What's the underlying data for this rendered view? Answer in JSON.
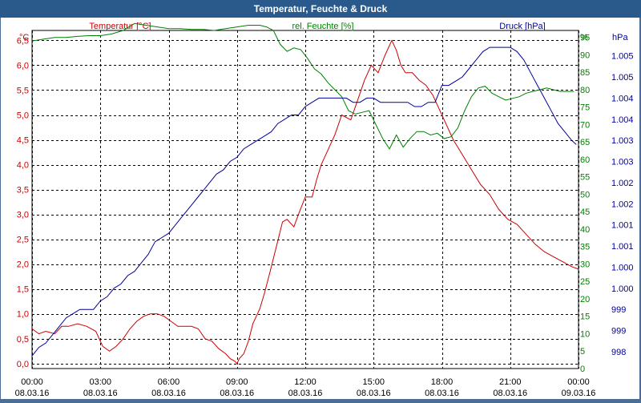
{
  "window": {
    "title": "Temperatur, Feuchte & Druck"
  },
  "colors": {
    "temperature": "#cc0000",
    "humidity": "#008000",
    "pressure": "#000099",
    "grid": "#000000",
    "titlebar": "#2a5a8c"
  },
  "chart_data": {
    "type": "line",
    "title": "Temperatur, Feuchte & Druck",
    "grid": true,
    "x_labels": [
      {
        "time": "00:00",
        "date": "08.03.16"
      },
      {
        "time": "03:00",
        "date": "08.03.16"
      },
      {
        "time": "06:00",
        "date": "08.03.16"
      },
      {
        "time": "09:00",
        "date": "08.03.16"
      },
      {
        "time": "12:00",
        "date": "08.03.16"
      },
      {
        "time": "15:00",
        "date": "08.03.16"
      },
      {
        "time": "18:00",
        "date": "08.03.16"
      },
      {
        "time": "21:00",
        "date": "08.03.16"
      },
      {
        "time": "00:00",
        "date": "09.03.16"
      }
    ],
    "x_range_hours": [
      0,
      24
    ],
    "axes": {
      "temperature": {
        "label": "Temperatur [°C]",
        "unit": "°C",
        "range": [
          -0.1,
          6.7
        ],
        "ticks": [
          "0,0",
          "0,5",
          "1,0",
          "1,5",
          "2,0",
          "2,5",
          "3,0",
          "3,5",
          "4,0",
          "4,5",
          "5,0",
          "5,5",
          "6,0",
          "6,5"
        ]
      },
      "humidity": {
        "label": "rel. Feuchte [%]",
        "unit": "%",
        "range": [
          0,
          97
        ],
        "ticks": [
          "0",
          "5",
          "10",
          "15",
          "20",
          "25",
          "30",
          "35",
          "40",
          "45",
          "50",
          "55",
          "60",
          "65",
          "70",
          "75",
          "80",
          "85",
          "90",
          "95"
        ]
      },
      "pressure": {
        "label": "Druck [hPa]",
        "unit": "hPa",
        "range": [
          997.6,
          1005.6
        ],
        "ticks": [
          "998",
          "999",
          "999",
          "1.000",
          "1.000",
          "1.001",
          "1.001",
          "1.002",
          "1.002",
          "1.003",
          "1.003",
          "1.004",
          "1.004",
          "1.005",
          "1.005"
        ]
      }
    },
    "series": [
      {
        "name": "Temperatur [°C]",
        "axis": "temperature",
        "x": [
          0,
          0.3,
          0.6,
          1,
          1.3,
          1.6,
          2,
          2.4,
          2.8,
          3.1,
          3.4,
          3.7,
          4,
          4.3,
          4.6,
          4.9,
          5.2,
          5.5,
          5.8,
          6.1,
          6.4,
          6.7,
          7,
          7.3,
          7.6,
          7.9,
          8.2,
          8.5,
          8.7,
          8.9,
          9,
          9.1,
          9.3,
          9.5,
          9.7,
          10,
          10.2,
          10.4,
          10.7,
          11,
          11.2,
          11.5,
          11.7,
          12,
          12.3,
          12.5,
          12.7,
          13,
          13.3,
          13.6,
          14,
          14.3,
          14.6,
          14.9,
          15.2,
          15.5,
          15.8,
          16,
          16.2,
          16.4,
          16.7,
          17,
          17.3,
          17.6,
          17.9,
          18.2,
          18.5,
          18.9,
          19.3,
          19.7,
          20.1,
          20.5,
          20.9,
          21.3,
          21.7,
          22.1,
          22.5,
          22.9,
          23.3,
          23.7,
          24
        ],
        "values": [
          0.7,
          0.6,
          0.65,
          0.6,
          0.75,
          0.75,
          0.8,
          0.75,
          0.65,
          0.35,
          0.25,
          0.35,
          0.5,
          0.7,
          0.85,
          0.95,
          1.0,
          1.0,
          0.95,
          0.85,
          0.75,
          0.75,
          0.75,
          0.7,
          0.5,
          0.45,
          0.3,
          0.2,
          0.1,
          0.05,
          0.0,
          0.1,
          0.2,
          0.45,
          0.8,
          1.1,
          1.4,
          1.75,
          2.3,
          2.85,
          2.9,
          2.75,
          3.0,
          3.35,
          3.35,
          3.7,
          4.0,
          4.3,
          4.6,
          5.0,
          4.9,
          5.3,
          5.7,
          6.0,
          5.85,
          6.2,
          6.5,
          6.3,
          6.0,
          5.85,
          5.85,
          5.7,
          5.6,
          5.4,
          5.1,
          4.8,
          4.5,
          4.2,
          3.9,
          3.6,
          3.4,
          3.1,
          2.9,
          2.8,
          2.6,
          2.4,
          2.25,
          2.15,
          2.05,
          1.95,
          1.9
        ]
      },
      {
        "name": "rel. Feuchte [%]",
        "axis": "humidity",
        "x": [
          0,
          0.5,
          1,
          1.5,
          2,
          2.5,
          3,
          3.5,
          4,
          4.5,
          5,
          5.5,
          6,
          6.5,
          7,
          7.5,
          8,
          8.5,
          9,
          9.5,
          10,
          10.3,
          10.6,
          10.9,
          11.2,
          11.5,
          11.8,
          12.1,
          12.4,
          12.7,
          13,
          13.3,
          13.6,
          13.9,
          14.2,
          14.5,
          14.8,
          15.1,
          15.4,
          15.7,
          16,
          16.3,
          16.6,
          16.9,
          17.2,
          17.5,
          17.8,
          18.1,
          18.4,
          18.7,
          19,
          19.3,
          19.6,
          19.9,
          20.2,
          20.5,
          20.8,
          21.1,
          21.4,
          21.7,
          22,
          22.3,
          22.6,
          22.9,
          23.2,
          23.5,
          23.8
        ],
        "values": [
          94,
          94.5,
          95,
          95,
          95.3,
          95.5,
          95.5,
          96,
          97,
          99,
          98.5,
          98,
          97.5,
          97.5,
          97.3,
          97.3,
          97,
          97.5,
          98,
          98.5,
          98.5,
          98,
          97,
          93,
          91,
          92,
          91.5,
          89,
          86,
          84.5,
          82,
          80,
          78,
          74,
          73,
          73.5,
          74,
          70,
          66,
          63,
          67,
          63.5,
          66,
          68,
          68,
          67,
          67.5,
          66,
          66.5,
          69,
          74,
          78,
          80.5,
          81,
          79,
          78,
          77,
          77.5,
          78,
          79,
          79.5,
          80,
          80.5,
          80,
          79.5,
          79.5,
          79.5
        ]
      },
      {
        "name": "Druck [hPa]",
        "axis": "pressure",
        "x": [
          0,
          0.3,
          0.6,
          0.9,
          1.2,
          1.5,
          1.8,
          2.1,
          2.4,
          2.7,
          3,
          3.3,
          3.6,
          3.9,
          4.2,
          4.5,
          4.8,
          5.1,
          5.4,
          5.7,
          6,
          6.3,
          6.6,
          6.9,
          7.2,
          7.5,
          7.8,
          8.1,
          8.4,
          8.7,
          9,
          9.3,
          9.6,
          9.9,
          10.2,
          10.5,
          10.8,
          11.1,
          11.4,
          11.7,
          12,
          12.3,
          12.6,
          12.9,
          13.2,
          13.5,
          13.8,
          14.1,
          14.4,
          14.7,
          15,
          15.3,
          15.6,
          15.9,
          16.2,
          16.5,
          16.8,
          17.1,
          17.4,
          17.7,
          18,
          18.3,
          18.6,
          18.9,
          19.2,
          19.5,
          19.8,
          20.1,
          20.4,
          20.7,
          21,
          21.3,
          21.6,
          21.9,
          22.2,
          22.5,
          22.8,
          23.1,
          23.4,
          23.7,
          23.9
        ],
        "values": [
          997.9,
          998.1,
          998.2,
          998.4,
          998.6,
          998.8,
          998.9,
          999.0,
          999.0,
          999.0,
          999.2,
          999.3,
          999.5,
          999.6,
          999.8,
          999.9,
          1000.1,
          1000.3,
          1000.6,
          1000.7,
          1000.8,
          1001.0,
          1001.2,
          1001.4,
          1001.6,
          1001.8,
          1002.0,
          1002.2,
          1002.3,
          1002.5,
          1002.6,
          1002.8,
          1002.9,
          1003.0,
          1003.1,
          1003.2,
          1003.4,
          1003.5,
          1003.6,
          1003.6,
          1003.8,
          1003.9,
          1004.0,
          1004.0,
          1004.0,
          1004.0,
          1004.0,
          1003.9,
          1003.9,
          1004.0,
          1004.0,
          1003.9,
          1003.9,
          1003.9,
          1003.9,
          1003.9,
          1003.8,
          1003.8,
          1003.9,
          1003.9,
          1004.3,
          1004.3,
          1004.4,
          1004.5,
          1004.7,
          1004.9,
          1005.1,
          1005.2,
          1005.2,
          1005.2,
          1005.2,
          1005.1,
          1004.9,
          1004.6,
          1004.3,
          1004.0,
          1003.7,
          1003.4,
          1003.2,
          1003.0,
          1002.9
        ]
      }
    ]
  }
}
